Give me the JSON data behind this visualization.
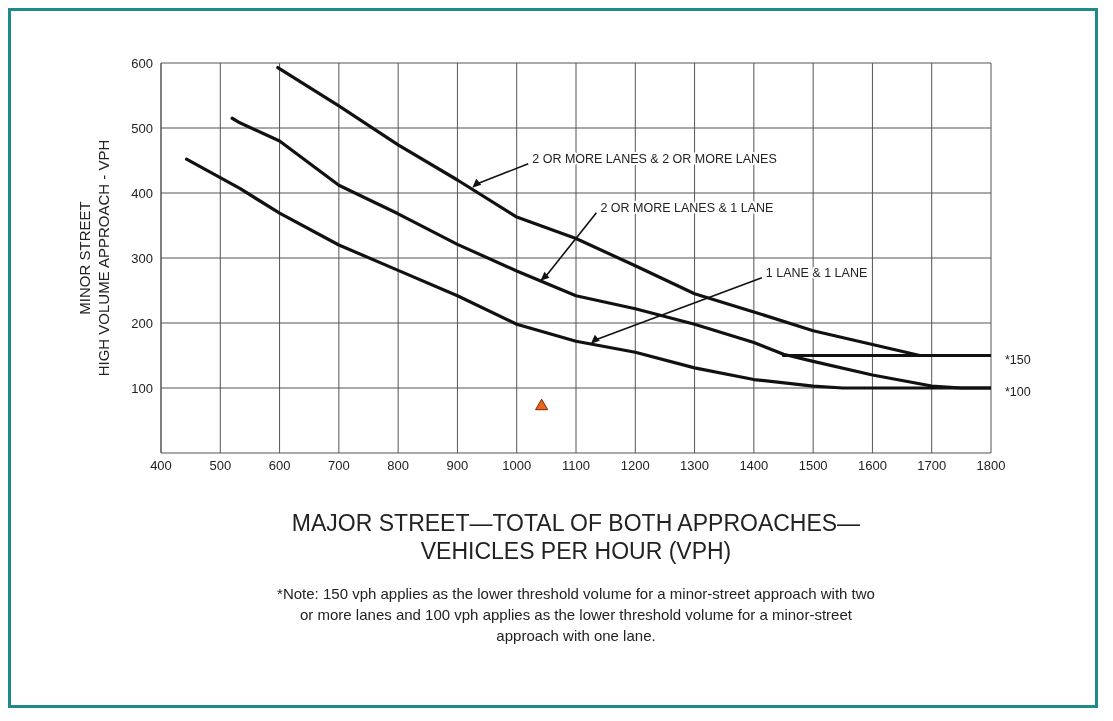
{
  "chart_data": {
    "type": "line",
    "xlabel": "MAJOR STREET—TOTAL OF BOTH APPROACHES—\nVEHICLES PER HOUR (VPH)",
    "ylabel": "MINOR STREET\nHIGH VOLUME APPROACH - VPH",
    "xlim": [
      400,
      1800
    ],
    "xticks": [
      400,
      500,
      600,
      700,
      800,
      900,
      1000,
      1100,
      1200,
      1300,
      1400,
      1500,
      1600,
      1700,
      1800
    ],
    "ylim": [
      0,
      600
    ],
    "yticks": [
      100,
      200,
      300,
      400,
      500,
      600
    ],
    "grid": true,
    "marker": "none",
    "line_style": "solid",
    "series": [
      {
        "color": "#111111",
        "x": [
          597,
          700,
          800,
          900,
          1000,
          1100,
          1200,
          1300,
          1400,
          1500,
          1600,
          1680,
          1800
        ],
        "values": [
          593,
          534,
          474,
          420,
          363,
          330,
          288,
          245,
          217,
          188,
          167,
          150,
          150
        ]
      },
      {
        "color": "#111111",
        "x": [
          520,
          533,
          600,
          700,
          800,
          900,
          1000,
          1100,
          1200,
          1300,
          1400,
          1450,
          1500,
          1600,
          1700,
          1750,
          1800
        ],
        "values": [
          515,
          508,
          480,
          412,
          368,
          321,
          280,
          242,
          222,
          198,
          170,
          152,
          141,
          120,
          103,
          100,
          100
        ]
      },
      {
        "color": "#111111",
        "x": [
          1450,
          1800
        ],
        "values": [
          150,
          150
        ]
      },
      {
        "color": "#111111",
        "x": [
          443,
          533,
          600,
          700,
          800,
          900,
          1000,
          1100,
          1200,
          1300,
          1400,
          1500,
          1550,
          1800
        ],
        "values": [
          452,
          407,
          369,
          320,
          281,
          242,
          198,
          172,
          155,
          131,
          113,
          103,
          100,
          100
        ]
      },
      {
        "type": "scatter",
        "marker": "triangle",
        "color": "#e8651a",
        "x": [
          1042
        ],
        "values": [
          72
        ]
      }
    ],
    "annotations": [
      {
        "text": "2 OR MORE LANES & 2 OR MORE LANES",
        "x": 925,
        "y": 408
      },
      {
        "text": "2 OR MORE LANES & 1 LANE",
        "x": 1040,
        "y": 265
      },
      {
        "text": "1 LANE & 1 LANE",
        "x": 1125,
        "y": 168
      },
      {
        "text": "*150",
        "x": 1800,
        "y": 150
      },
      {
        "text": "*100",
        "x": 1800,
        "y": 100
      },
      "*Note: 150 vph applies as the lower threshold volume for a minor-street approach with two or more lanes and 100 vph applies as the lower threshold volume for a minor-street approach with one lane."
    ]
  }
}
